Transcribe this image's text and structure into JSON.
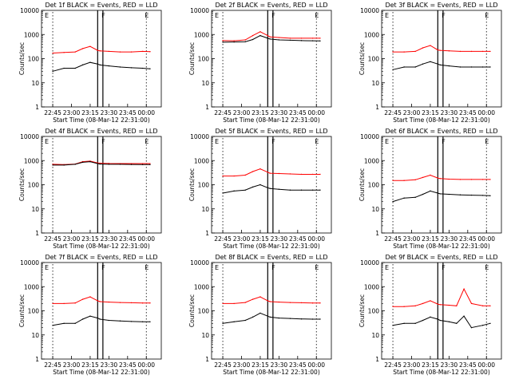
{
  "figure": {
    "ylabel": "Counts/sec",
    "xlabel": "Start Time (08-Mar-12 22:31:00)",
    "xtick_labels": [
      "22:45",
      "23:00",
      "23:15",
      "23:30",
      "23:45",
      "00:00"
    ],
    "ytick_labels": [
      "1",
      "10",
      "100",
      "1000",
      "10000"
    ],
    "marker_labels": [
      "E",
      "F",
      "E"
    ],
    "colors": {
      "events": "#000000",
      "lld": "#ff0000"
    }
  },
  "chart_data": [
    {
      "type": "line",
      "title": "Det 1f BLACK = Events, RED = LLD",
      "xlabel": "Start Time (08-Mar-12 22:31:00)",
      "ylabel": "Counts/sec",
      "yscale": "log",
      "ylim": [
        1,
        10000
      ],
      "series": [
        {
          "name": "Events",
          "color": "#000000",
          "t": [
            22.75,
            22.9,
            23.05,
            23.15,
            23.25,
            23.35,
            23.38,
            23.5,
            23.65,
            23.8,
            23.95,
            24.05
          ],
          "values": [
            30,
            40,
            40,
            55,
            70,
            60,
            55,
            50,
            45,
            42,
            40,
            38
          ]
        },
        {
          "name": "LLD",
          "color": "#ff0000",
          "t": [
            22.75,
            22.9,
            23.05,
            23.15,
            23.25,
            23.35,
            23.38,
            23.5,
            23.65,
            23.8,
            23.95,
            24.05
          ],
          "values": [
            170,
            180,
            190,
            260,
            320,
            220,
            210,
            200,
            190,
            190,
            200,
            195
          ]
        }
      ]
    },
    {
      "type": "line",
      "title": "Det 2f BLACK = Events, RED = LLD",
      "xlabel": "Start Time (08-Mar-12 22:31:00)",
      "ylabel": "Counts/sec",
      "yscale": "log",
      "ylim": [
        1,
        10000
      ],
      "series": [
        {
          "name": "Events",
          "color": "#000000",
          "t": [
            22.75,
            22.9,
            23.05,
            23.15,
            23.25,
            23.35,
            23.38,
            23.5,
            23.65,
            23.8,
            23.95,
            24.05
          ],
          "values": [
            480,
            490,
            500,
            620,
            900,
            700,
            650,
            600,
            580,
            560,
            550,
            540
          ]
        },
        {
          "name": "LLD",
          "color": "#ff0000",
          "t": [
            22.75,
            22.9,
            23.05,
            23.15,
            23.25,
            23.35,
            23.38,
            23.5,
            23.65,
            23.8,
            23.95,
            24.05
          ],
          "values": [
            560,
            550,
            600,
            900,
            1300,
            900,
            800,
            750,
            700,
            700,
            700,
            700
          ]
        }
      ]
    },
    {
      "type": "line",
      "title": "Det 3f BLACK = Events, RED = LLD",
      "xlabel": "Start Time (08-Mar-12 22:31:00)",
      "ylabel": "Counts/sec",
      "yscale": "log",
      "ylim": [
        1,
        10000
      ],
      "series": [
        {
          "name": "Events",
          "color": "#000000",
          "t": [
            22.75,
            22.9,
            23.05,
            23.15,
            23.25,
            23.35,
            23.38,
            23.5,
            23.65,
            23.8,
            23.95,
            24.05
          ],
          "values": [
            35,
            45,
            45,
            60,
            75,
            60,
            55,
            50,
            45,
            45,
            45,
            45
          ]
        },
        {
          "name": "LLD",
          "color": "#ff0000",
          "t": [
            22.75,
            22.9,
            23.05,
            23.15,
            23.25,
            23.35,
            23.38,
            23.5,
            23.65,
            23.8,
            23.95,
            24.05
          ],
          "values": [
            190,
            190,
            200,
            280,
            350,
            230,
            220,
            210,
            200,
            200,
            200,
            200
          ]
        }
      ]
    },
    {
      "type": "line",
      "title": "Det 4f BLACK = Events, RED = LLD",
      "xlabel": "Start Time (08-Mar-12 22:31:00)",
      "ylabel": "Counts/sec",
      "yscale": "log",
      "ylim": [
        1,
        10000
      ],
      "series": [
        {
          "name": "Events",
          "color": "#000000",
          "t": [
            22.75,
            22.9,
            23.05,
            23.15,
            23.25,
            23.35,
            23.38,
            23.5,
            23.65,
            23.8,
            23.95,
            24.05
          ],
          "values": [
            650,
            650,
            700,
            850,
            900,
            750,
            720,
            700,
            700,
            690,
            680,
            680
          ]
        },
        {
          "name": "LLD",
          "color": "#ff0000",
          "t": [
            22.75,
            22.9,
            23.05,
            23.15,
            23.25,
            23.35,
            23.38,
            23.5,
            23.65,
            23.8,
            23.95,
            24.05
          ],
          "values": [
            700,
            680,
            720,
            900,
            950,
            800,
            780,
            760,
            750,
            750,
            750,
            750
          ]
        }
      ]
    },
    {
      "type": "line",
      "title": "Det 5f BLACK = Events, RED = LLD",
      "xlabel": "Start Time (08-Mar-12 22:31:00)",
      "ylabel": "Counts/sec",
      "yscale": "log",
      "ylim": [
        1,
        10000
      ],
      "series": [
        {
          "name": "Events",
          "color": "#000000",
          "t": [
            22.75,
            22.9,
            23.05,
            23.15,
            23.25,
            23.35,
            23.38,
            23.5,
            23.65,
            23.8,
            23.95,
            24.05
          ],
          "values": [
            45,
            55,
            60,
            80,
            100,
            75,
            70,
            65,
            60,
            60,
            60,
            60
          ]
        },
        {
          "name": "LLD",
          "color": "#ff0000",
          "t": [
            22.75,
            22.9,
            23.05,
            23.15,
            23.25,
            23.35,
            23.38,
            23.5,
            23.65,
            23.8,
            23.95,
            24.05
          ],
          "values": [
            230,
            230,
            250,
            350,
            450,
            330,
            300,
            290,
            280,
            270,
            270,
            270
          ]
        }
      ]
    },
    {
      "type": "line",
      "title": "Det 6f BLACK = Events, RED = LLD",
      "xlabel": "Start Time (08-Mar-12 22:31:00)",
      "ylabel": "Counts/sec",
      "yscale": "log",
      "ylim": [
        1,
        10000
      ],
      "series": [
        {
          "name": "Events",
          "color": "#000000",
          "t": [
            22.75,
            22.9,
            23.05,
            23.15,
            23.25,
            23.35,
            23.38,
            23.5,
            23.65,
            23.8,
            23.95,
            24.05
          ],
          "values": [
            20,
            28,
            30,
            40,
            55,
            45,
            42,
            40,
            38,
            37,
            36,
            35
          ]
        },
        {
          "name": "LLD",
          "color": "#ff0000",
          "t": [
            22.75,
            22.9,
            23.05,
            23.15,
            23.25,
            23.35,
            23.38,
            23.5,
            23.65,
            23.8,
            23.95,
            24.05
          ],
          "values": [
            150,
            150,
            160,
            200,
            250,
            190,
            180,
            170,
            165,
            165,
            165,
            165
          ]
        }
      ]
    },
    {
      "type": "line",
      "title": "Det 7f BLACK = Events, RED = LLD",
      "xlabel": "Start Time (08-Mar-12 22:31:00)",
      "ylabel": "Counts/sec",
      "yscale": "log",
      "ylim": [
        1,
        10000
      ],
      "series": [
        {
          "name": "Events",
          "color": "#000000",
          "t": [
            22.75,
            22.9,
            23.05,
            23.15,
            23.25,
            23.35,
            23.38,
            23.5,
            23.65,
            23.8,
            23.95,
            24.05
          ],
          "values": [
            25,
            30,
            30,
            45,
            60,
            50,
            45,
            40,
            38,
            36,
            35,
            35
          ]
        },
        {
          "name": "LLD",
          "color": "#ff0000",
          "t": [
            22.75,
            22.9,
            23.05,
            23.15,
            23.25,
            23.35,
            23.38,
            23.5,
            23.65,
            23.8,
            23.95,
            24.05
          ],
          "values": [
            200,
            200,
            210,
            300,
            380,
            260,
            240,
            230,
            220,
            215,
            210,
            210
          ]
        }
      ]
    },
    {
      "type": "line",
      "title": "Det 8f BLACK = Events, RED = LLD",
      "xlabel": "Start Time (08-Mar-12 22:31:00)",
      "ylabel": "Counts/sec",
      "yscale": "log",
      "ylim": [
        1,
        10000
      ],
      "series": [
        {
          "name": "Events",
          "color": "#000000",
          "t": [
            22.75,
            22.9,
            23.05,
            23.15,
            23.25,
            23.35,
            23.38,
            23.5,
            23.65,
            23.8,
            23.95,
            24.05
          ],
          "values": [
            30,
            35,
            40,
            55,
            80,
            60,
            55,
            50,
            48,
            46,
            45,
            45
          ]
        },
        {
          "name": "LLD",
          "color": "#ff0000",
          "t": [
            22.75,
            22.9,
            23.05,
            23.15,
            23.25,
            23.35,
            23.38,
            23.5,
            23.65,
            23.8,
            23.95,
            24.05
          ],
          "values": [
            200,
            200,
            220,
            300,
            380,
            260,
            240,
            230,
            220,
            215,
            210,
            210
          ]
        }
      ]
    },
    {
      "type": "line",
      "title": "Det 9f BLACK = Events, RED = LLD",
      "xlabel": "Start Time (08-Mar-12 22:31:00)",
      "ylabel": "Counts/sec",
      "yscale": "log",
      "ylim": [
        1,
        10000
      ],
      "series": [
        {
          "name": "Events",
          "color": "#000000",
          "t": [
            22.75,
            22.9,
            23.05,
            23.15,
            23.25,
            23.35,
            23.38,
            23.5,
            23.6,
            23.7,
            23.8,
            23.95,
            24.05
          ],
          "values": [
            25,
            30,
            30,
            40,
            55,
            45,
            40,
            35,
            30,
            60,
            20,
            25,
            30
          ]
        },
        {
          "name": "LLD",
          "color": "#ff0000",
          "t": [
            22.75,
            22.9,
            23.05,
            23.15,
            23.25,
            23.35,
            23.38,
            23.5,
            23.6,
            23.7,
            23.8,
            23.95,
            24.05
          ],
          "values": [
            150,
            150,
            160,
            200,
            260,
            190,
            180,
            170,
            160,
            800,
            200,
            160,
            160
          ]
        }
      ]
    }
  ]
}
